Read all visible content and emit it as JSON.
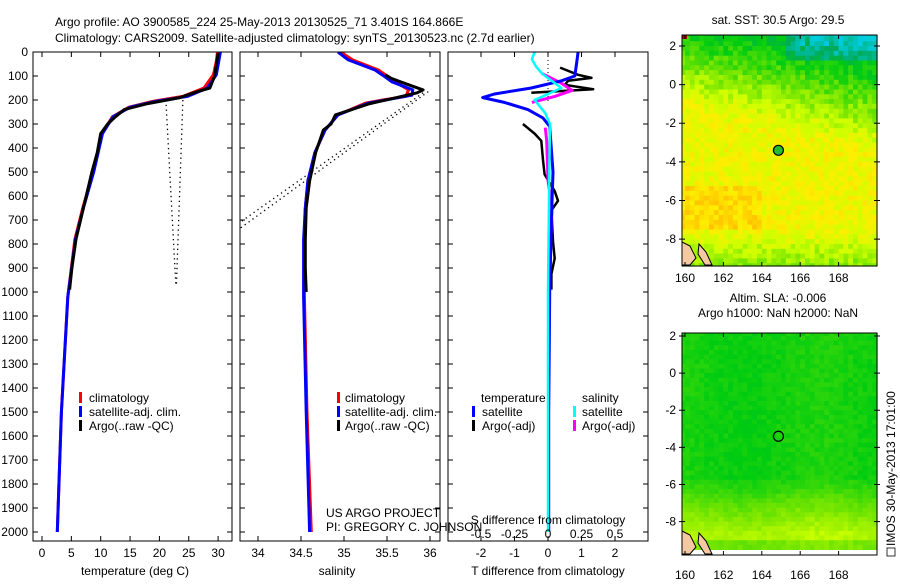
{
  "title_line1": "Argo profile: AO 3900585_224 25-May-2013 20130525_71 3.401S 164.866E",
  "title_line2": "Climatology: CARS2009. Satellite-adjusted climatology: synTS_20130523.nc (2.7d earlier)",
  "credit_line1": "US ARGO PROJECT",
  "credit_line2": "PI: GREGORY C. JOHNSON",
  "side_stamp": "IMOS 30-May-2013 17:01:00",
  "colors": {
    "climatology": "#ff0000",
    "satellite": "#0000ff",
    "argo": "#000000",
    "sal_satellite": "#00ffff",
    "sal_argo": "#ff00ff"
  },
  "chart_data": [
    {
      "type": "line",
      "name": "temperature-profile",
      "xlabel": "temperature (deg C)",
      "ylabel": "",
      "xlim": [
        -1.5,
        32.4
      ],
      "ylim": [
        2037,
        0
      ],
      "xticks": [
        "0",
        "5",
        "10",
        "15",
        "20",
        "25",
        "30"
      ],
      "xtick_values": [
        0,
        5,
        10,
        15,
        20,
        25,
        30
      ],
      "yticks": [
        "0",
        "100",
        "200",
        "300",
        "400",
        "500",
        "600",
        "700",
        "800",
        "900",
        "1000",
        "1100",
        "1200",
        "1300",
        "1400",
        "1500",
        "1600",
        "1700",
        "1800",
        "1900",
        "2000"
      ],
      "legend": [
        "climatology",
        "satellite-adj. clim.",
        "Argo(..raw -QC)"
      ],
      "series": [
        {
          "name": "climatology",
          "color": "#ff0000",
          "depth": [
            0,
            40,
            95,
            150,
            185,
            205,
            230,
            270,
            340,
            500,
            645,
            780,
            1020,
            1500,
            2000
          ],
          "values": [
            29.9,
            29.7,
            29.2,
            27.6,
            24.0,
            19.0,
            14.8,
            12.0,
            10.2,
            8.7,
            7.0,
            5.6,
            4.4,
            3.3,
            2.6
          ]
        },
        {
          "name": "satellite-adj. clim.",
          "color": "#0000ff",
          "depth": [
            0,
            40,
            95,
            150,
            185,
            205,
            230,
            270,
            340,
            500,
            645,
            780,
            1020,
            1500,
            2000
          ],
          "values": [
            30.4,
            30.1,
            29.7,
            28.2,
            24.8,
            19.5,
            15.0,
            12.1,
            10.3,
            8.8,
            7.1,
            5.7,
            4.4,
            3.3,
            2.6
          ]
        },
        {
          "name": "Argo(..raw -QC)",
          "color": "#000000",
          "depth": [
            5,
            40,
            100,
            150,
            165,
            190,
            215,
            240,
            270,
            300,
            340,
            420,
            500,
            645,
            780,
            900,
            990
          ],
          "values": [
            30.0,
            29.8,
            29.4,
            28.6,
            26.5,
            23.5,
            18.0,
            14.0,
            12.5,
            11.2,
            10.0,
            9.4,
            8.5,
            7.1,
            5.8,
            5.1,
            4.7
          ]
        }
      ],
      "dotted": [
        {
          "depth": [
            200,
            970
          ],
          "values": [
            21.1,
            22.8
          ]
        },
        {
          "depth": [
            200,
            970
          ],
          "values": [
            24.0,
            22.9
          ]
        }
      ]
    },
    {
      "type": "line",
      "name": "salinity-profile",
      "xlabel": "salinity",
      "xlim": [
        33.79,
        36.12
      ],
      "ylim": [
        2037,
        0
      ],
      "xticks": [
        "34",
        "34.5",
        "35",
        "35.5",
        "36"
      ],
      "xtick_values": [
        34,
        34.5,
        35,
        35.5,
        36
      ],
      "legend": [
        "climatology",
        "satellite-adj. clim.",
        "Argo(..raw -QC)"
      ],
      "series": [
        {
          "name": "climatology",
          "color": "#ff0000",
          "depth": [
            0,
            33,
            75,
            104,
            125,
            158,
            185,
            200,
            213,
            262,
            325,
            420,
            537,
            650,
            783,
            1020,
            1500,
            2000
          ],
          "values": [
            34.96,
            35.1,
            35.4,
            35.52,
            35.6,
            35.75,
            35.72,
            35.45,
            35.25,
            34.93,
            34.78,
            34.66,
            34.58,
            34.55,
            34.54,
            34.54,
            34.57,
            34.62
          ]
        },
        {
          "name": "satellite-adj. clim.",
          "color": "#0000ff",
          "depth": [
            0,
            33,
            75,
            104,
            125,
            158,
            180,
            200,
            213,
            262,
            325,
            420,
            537,
            650,
            783,
            1020,
            1500,
            2000
          ],
          "values": [
            34.93,
            35.05,
            35.36,
            35.48,
            35.56,
            35.8,
            35.79,
            35.48,
            35.28,
            34.93,
            34.78,
            34.66,
            34.58,
            34.55,
            34.53,
            34.53,
            34.56,
            34.6
          ]
        },
        {
          "name": "Argo(..raw -QC)",
          "color": "#000000",
          "depth": [
            95,
            110,
            130,
            158,
            170,
            195,
            215,
            262,
            300,
            325,
            420,
            537,
            650,
            783,
            900,
            1000
          ],
          "values": [
            35.48,
            35.55,
            35.7,
            35.92,
            35.85,
            35.55,
            35.3,
            34.9,
            34.85,
            34.76,
            34.67,
            34.6,
            34.56,
            34.55,
            34.55,
            34.56
          ]
        }
      ],
      "dotted": [
        {
          "depth": [
            165,
            735
          ],
          "values": [
            35.98,
            33.79
          ]
        },
        {
          "depth": [
            170,
            710
          ],
          "values": [
            35.92,
            33.79
          ]
        }
      ]
    },
    {
      "type": "line",
      "name": "difference-profile",
      "xlabel": "T difference from climatology",
      "xlabel2": "S difference from climatology",
      "xlim": [
        -2.99,
        2.99
      ],
      "xticks": [
        "-2",
        "-1",
        "0",
        "1",
        "2"
      ],
      "xtick_values": [
        -2,
        -1,
        0,
        1,
        2
      ],
      "s_ticks": [
        "-0.5",
        "-0.25",
        "0",
        "0.25",
        "0.5"
      ],
      "s_tick_values": [
        -0.5,
        -0.25,
        0,
        0.25,
        0.5
      ],
      "legend_headers": [
        "temperature",
        "salinity"
      ],
      "legend": [
        "satellite",
        "Argo(-adj)",
        "satellite",
        "Argo(-adj)"
      ],
      "t_series": [
        {
          "name": "satellite",
          "color": "#0000ff",
          "depth": [
            0,
            50,
            100,
            120,
            150,
            175,
            190,
            210,
            240,
            275,
            310,
            500,
            700,
            1000,
            1500,
            2000
          ],
          "values": [
            0.9,
            0.85,
            0.8,
            0.4,
            -0.5,
            -1.6,
            -1.95,
            -1.3,
            -0.6,
            -0.15,
            0.05,
            0.15,
            0.1,
            0.05,
            0.02,
            0.02
          ]
        },
        {
          "name": "Argo(-adj)",
          "color": "#000000",
          "depth": [
            65,
            95,
            108,
            120,
            137,
            155,
            170
          ],
          "values": [
            0.36,
            0.9,
            1.3,
            0.6,
            0.5,
            1.35,
            -0.5
          ]
        },
        {
          "name": "Argo(-adj) deep",
          "color": "#000000",
          "depth": [
            300,
            340,
            370,
            450,
            510,
            580,
            620,
            660,
            790,
            860,
            925,
            990
          ],
          "values": [
            -0.75,
            -0.4,
            -0.2,
            -0.15,
            -0.1,
            0.2,
            0.3,
            0.1,
            0.15,
            0.2,
            0.1,
            0.1
          ]
        }
      ],
      "s_series": [
        {
          "name": "satellite",
          "color": "#00ffff",
          "depth": [
            0,
            30,
            60,
            90,
            150,
            200,
            255,
            300,
            500,
            1000,
            2000
          ],
          "values": [
            -0.1,
            -0.12,
            -0.09,
            -0.045,
            0.1,
            -0.1,
            -0.02,
            0.015,
            0.01,
            0.0,
            0.0
          ]
        },
        {
          "name": "Argo(-adj)",
          "color": "#ff00ff",
          "depth": [
            90,
            130,
            160,
            185,
            210
          ],
          "values": [
            -0.045,
            0.1,
            0.18,
            0.05,
            -0.12
          ]
        },
        {
          "name": "Argo(-adj) deep",
          "color": "#ff00ff",
          "depth": [
            315,
            370,
            535,
            650,
            800,
            900,
            990
          ],
          "values": [
            -0.02,
            -0.01,
            0.0,
            0.03,
            0.02,
            0.015,
            0.01
          ]
        }
      ]
    },
    {
      "type": "heatmap",
      "name": "sst-map",
      "title": "sat. SST: 30.5 Argo: 29.5",
      "xticks": [
        "160",
        "162",
        "164",
        "166",
        "168"
      ],
      "xtick_values": [
        160,
        162,
        164,
        166,
        168
      ],
      "yticks": [
        "2",
        "0",
        "-2",
        "-4",
        "-6",
        "-8"
      ],
      "ytick_values": [
        2,
        0,
        -2,
        -4,
        -6,
        -8
      ],
      "xlim": [
        159.85,
        170.0
      ],
      "ylim": [
        -9.4,
        2.6
      ],
      "marker": {
        "lon": 164.866,
        "lat": -3.401,
        "filled": true
      }
    },
    {
      "type": "heatmap",
      "name": "sla-map",
      "title": "Altim. SLA: -0.006",
      "subtitle": "Argo h1000: NaN h2000: NaN",
      "xticks": [
        "160",
        "162",
        "164",
        "166",
        "168"
      ],
      "xtick_values": [
        160,
        162,
        164,
        166,
        168
      ],
      "yticks": [
        "2",
        "0",
        "-2",
        "-4",
        "-6",
        "-8"
      ],
      "ytick_values": [
        2,
        0,
        -2,
        -4,
        -6,
        -8
      ],
      "xlim": [
        159.85,
        170.0
      ],
      "ylim": [
        -9.4,
        2.6
      ],
      "marker": {
        "lon": 164.866,
        "lat": -3.401,
        "filled": false
      }
    }
  ]
}
